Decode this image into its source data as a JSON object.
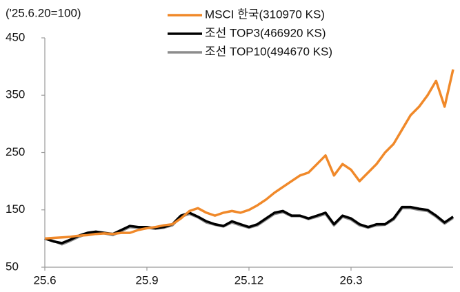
{
  "chart_data": {
    "type": "line",
    "y_label": "('25.6.20=100)",
    "categories": [
      "25.6",
      null,
      null,
      null,
      null,
      null,
      null,
      null,
      null,
      null,
      null,
      null,
      "25.9",
      null,
      null,
      null,
      null,
      null,
      null,
      null,
      null,
      null,
      null,
      null,
      "25.12",
      null,
      null,
      null,
      null,
      null,
      null,
      null,
      null,
      null,
      null,
      null,
      "26.3",
      null,
      null,
      null,
      null,
      null,
      null,
      null,
      null,
      null,
      null,
      null,
      null
    ],
    "ylim": [
      50,
      450
    ],
    "yticks": [
      50,
      150,
      250,
      350,
      450
    ],
    "grid": false,
    "legend": "top",
    "series": [
      {
        "name": "MSCI 한국(310970 KS)",
        "color": "#f0892a",
        "values": [
          100,
          101,
          102,
          103,
          105,
          106,
          108,
          109,
          108,
          110,
          110,
          115,
          118,
          120,
          123,
          125,
          135,
          148,
          153,
          145,
          140,
          145,
          148,
          145,
          150,
          158,
          168,
          180,
          190,
          200,
          210,
          215,
          230,
          245,
          210,
          230,
          220,
          200,
          215,
          230,
          250,
          265,
          290,
          315,
          330,
          350,
          375,
          330,
          395
        ]
      },
      {
        "name": "조선 TOP3(466920 KS)",
        "color": "#000000",
        "values": [
          100,
          95,
          92,
          98,
          105,
          110,
          112,
          110,
          108,
          115,
          122,
          120,
          120,
          118,
          120,
          125,
          140,
          145,
          138,
          130,
          125,
          122,
          130,
          125,
          120,
          125,
          135,
          145,
          148,
          140,
          140,
          135,
          140,
          145,
          125,
          140,
          135,
          125,
          120,
          125,
          125,
          135,
          155,
          155,
          152,
          150,
          140,
          128,
          138
        ]
      },
      {
        "name": "조선 TOP10(494670 KS)",
        "color": "#8c8c8c",
        "values": [
          100,
          96,
          90,
          96,
          103,
          108,
          110,
          109,
          106,
          113,
          120,
          119,
          119,
          117,
          119,
          123,
          138,
          143,
          137,
          128,
          124,
          121,
          128,
          123,
          119,
          123,
          133,
          143,
          146,
          139,
          139,
          134,
          138,
          143,
          123,
          138,
          133,
          123,
          119,
          123,
          124,
          133,
          153,
          153,
          150,
          148,
          138,
          126,
          136
        ]
      }
    ]
  }
}
